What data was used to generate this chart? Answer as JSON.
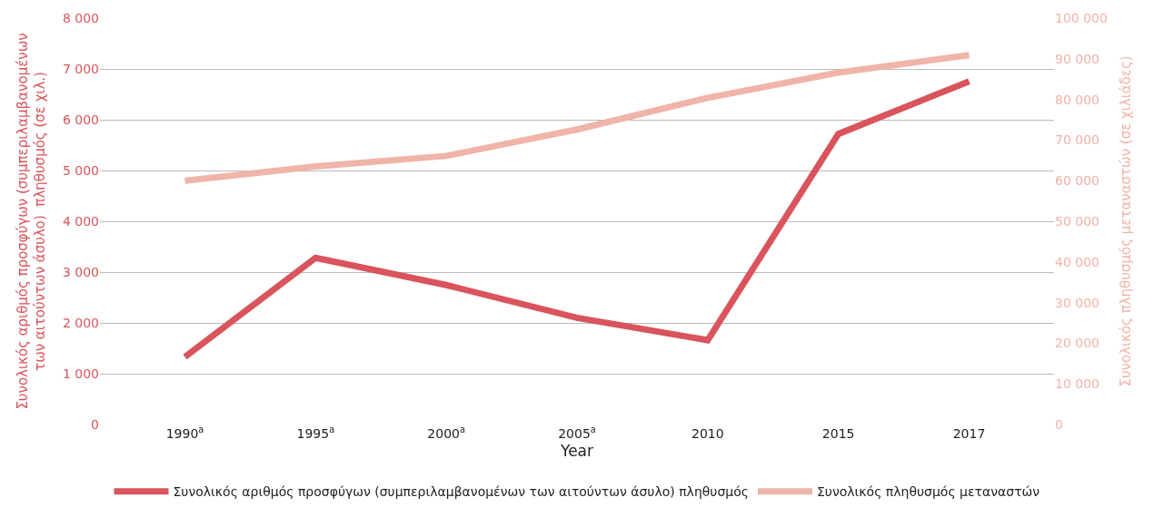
{
  "chart_data": {
    "type": "line",
    "xlabel": "Year",
    "ylabel": "Συνολικός αριθμός προσφύγων (συμπεριλαμβανομένων\nτων αιτούντων άσυλο)  πληθυσμός (σε χιλ.)",
    "y2label": "Συνολικός πληθυσμός μεταναστών (σε χιλιάδες)",
    "categories": [
      "1990$^{a}$",
      "1995$^{a}$",
      "2000$^{a}$",
      "2005$^{a}$",
      "2010",
      "2015",
      "2017"
    ],
    "series": [
      {
        "name": "Συνολικός αριθμός προσφύγων (συμπεριλαμβανομένων των αιτούντων άσυλο) πληθυσμός",
        "color": "#d9545c",
        "values": [
          1330,
          3280,
          2745,
          2100,
          1660,
          5720,
          6755
        ]
      },
      {
        "name": "Συνολικός πληθυσμός μεταναστών",
        "color": "#f0b4a8",
        "axis": "y2",
        "values": [
          60000,
          63500,
          66100,
          72600,
          80400,
          86600,
          90900
        ]
      }
    ],
    "ylim": [
      0,
      8000
    ],
    "yticks": [
      0,
      {
        "value": 1000,
        "label": "1 000"
      },
      {
        "value": 2000,
        "label": "2 000"
      },
      {
        "value": 3000,
        "label": "3 000"
      },
      {
        "value": 4000,
        "label": "4 000"
      },
      {
        "value": 5000,
        "label": "5 000"
      },
      {
        "value": 6000,
        "label": "6 000"
      },
      {
        "value": 7000,
        "label": "7 000"
      },
      {
        "value": 8000,
        "label": "8 000"
      }
    ],
    "y2lim": [
      0,
      100000
    ],
    "y2ticks": [
      0,
      {
        "value": 10000,
        "label": "10 000"
      },
      {
        "value": 20000,
        "label": "20 000"
      },
      {
        "value": 30000,
        "label": "30 000"
      },
      {
        "value": 40000,
        "label": "40 000"
      },
      {
        "value": 50000,
        "label": "50 000"
      },
      {
        "value": 60000,
        "label": "60 000"
      },
      {
        "value": 70000,
        "label": "70 000"
      },
      {
        "value": 80000,
        "label": "80 000"
      },
      {
        "value": 90000,
        "label": "90 000"
      },
      {
        "value": 100000,
        "label": "100 000"
      }
    ],
    "grid": "y",
    "legend": "bottom",
    "marker": "none",
    "line_style": "solid"
  }
}
